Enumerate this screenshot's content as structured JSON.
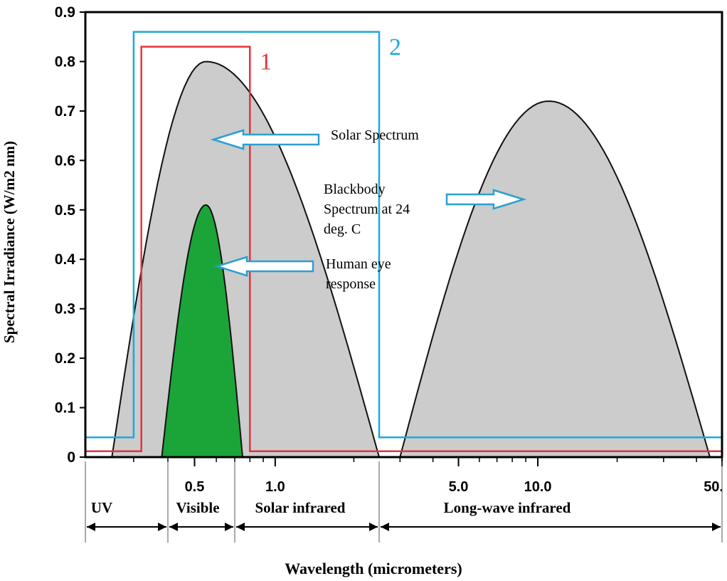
{
  "chart_data": {
    "type": "area",
    "title": "",
    "xlabel": "Wavelength (micrometers)",
    "ylabel": "Spectral Irradiance (W/m2 nm)",
    "ylim": [
      0,
      0.9
    ],
    "yticks": [
      "0",
      "0.1",
      "0.2",
      "0.3",
      "0.4",
      "0.5",
      "0.6",
      "0.7",
      "0.8",
      "0.9"
    ],
    "xtick_labels": [
      "0.5",
      "1.0",
      "5.0",
      "10.0",
      "50."
    ],
    "regions": [
      "UV",
      "Visible",
      "Solar infrared",
      "Long-wave infrared"
    ],
    "series": [
      {
        "name": "Solar Spectrum",
        "shape": "bell",
        "fill": "#cccccc",
        "x_start": 0.25,
        "x_end": 2.5,
        "peak_x": 0.55,
        "peak_y": 0.8
      },
      {
        "name": "Human eye response",
        "shape": "bell",
        "fill": "#1ba539",
        "x_start": 0.38,
        "x_end": 0.75,
        "peak_x": 0.55,
        "peak_y": 0.51
      },
      {
        "name": "Blackbody Spectrum at 24 deg. C",
        "shape": "bell",
        "fill": "#cccccc",
        "x_start": 3.0,
        "x_end": 45,
        "peak_x": 11,
        "peak_y": 0.72
      },
      {
        "name": "1",
        "shape": "step",
        "color": "#e2343c",
        "x": [
          0.2,
          0.32,
          0.32,
          0.8,
          0.8,
          50
        ],
        "y": [
          0.012,
          0.012,
          0.83,
          0.83,
          0.012,
          0.012
        ]
      },
      {
        "name": "2",
        "shape": "step",
        "color": "#1fa8d8",
        "x": [
          0.2,
          0.3,
          0.3,
          2.5,
          2.5,
          50
        ],
        "y": [
          0.04,
          0.04,
          0.86,
          0.86,
          0.04,
          0.04
        ]
      }
    ],
    "annotations": [
      {
        "lines": [
          "Solar Spectrum"
        ],
        "arrow_direction": "left"
      },
      {
        "lines": [
          "Blackbody",
          "Spectrum at 24",
          "deg. C"
        ],
        "arrow_direction": "right"
      },
      {
        "lines": [
          "Human eye",
          "response"
        ],
        "arrow_direction": "left"
      }
    ],
    "legend": "none",
    "grid": false
  }
}
